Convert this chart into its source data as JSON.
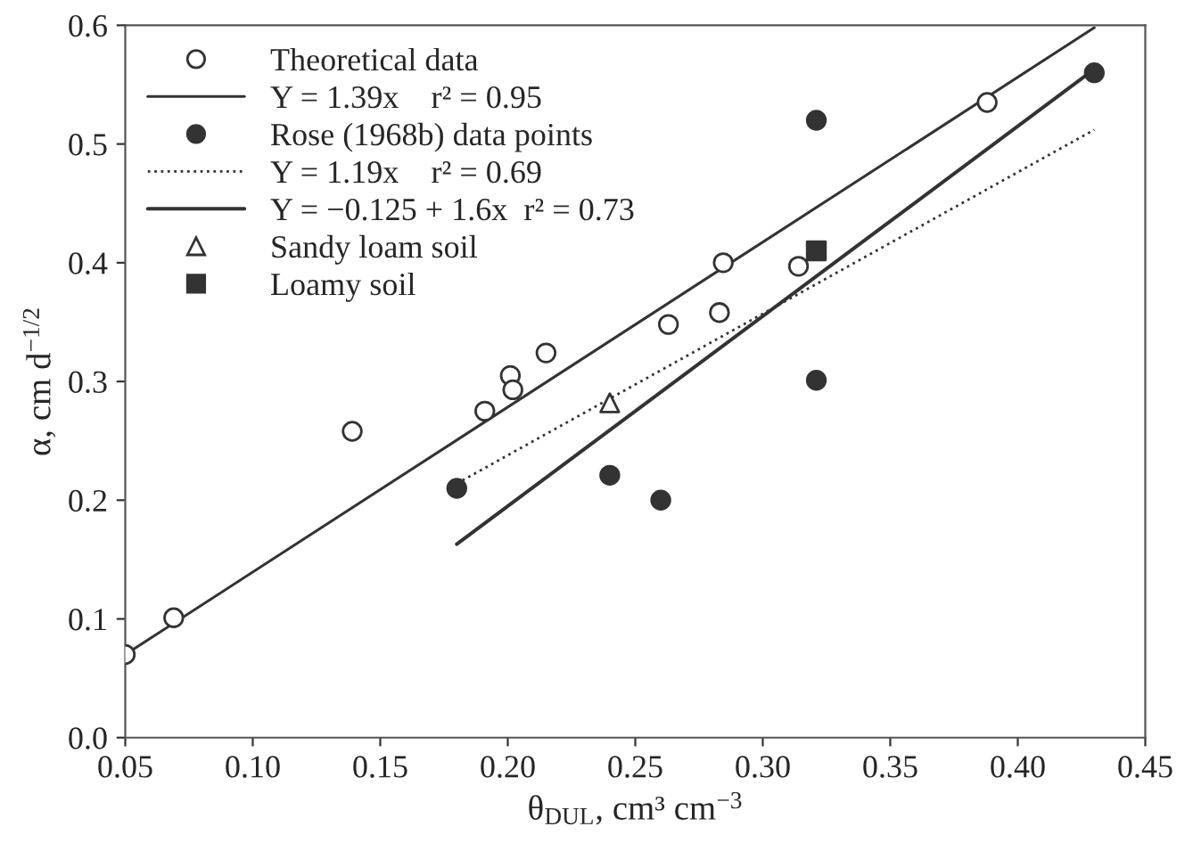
{
  "chart_data": {
    "type": "scatter",
    "xlabel": "θ$_{DUL}$, cm³ cm$^{−3}$",
    "ylabel": "α, cm d$^{−1/2}$",
    "xlim": [
      0.05,
      0.45
    ],
    "ylim": [
      0.0,
      0.6
    ],
    "xticks": [
      {
        "value": 0.05,
        "label": "0.05"
      },
      {
        "value": 0.1,
        "label": "0.10"
      },
      {
        "value": 0.15,
        "label": "0.15"
      },
      {
        "value": 0.2,
        "label": "0.20"
      },
      {
        "value": 0.25,
        "label": "0.25"
      },
      {
        "value": 0.3,
        "label": "0.30"
      },
      {
        "value": 0.35,
        "label": "0.35"
      },
      {
        "value": 0.4,
        "label": "0.40"
      },
      {
        "value": 0.45,
        "label": "0.45"
      }
    ],
    "yticks": [
      {
        "value": 0.0,
        "label": "0.0"
      },
      0.1,
      0.2,
      0.3,
      0.4,
      0.5,
      0.6
    ],
    "grid": false,
    "legend": "top left",
    "series": [
      {
        "name": "Theoretical data",
        "marker": "circle",
        "color": "#ffffff",
        "x": [
          0.05,
          0.069,
          0.139,
          0.191,
          0.201,
          0.202,
          0.215,
          0.263,
          0.283,
          0.2845,
          0.314,
          0.388
        ],
        "values": [
          0.07,
          0.101,
          0.258,
          0.275,
          0.305,
          0.293,
          0.324,
          0.348,
          0.358,
          0.4,
          0.397,
          0.535
        ]
      },
      {
        "name": "Y = 1.39x    r² = 0.95",
        "type": "line",
        "line_style": "solid",
        "color": "#333333",
        "x": [
          0.05,
          0.43
        ],
        "values": [
          0.07,
          0.598
        ]
      },
      {
        "name": "Rose (1968b) data points",
        "marker": "circle",
        "color": "#333333",
        "x": [
          0.18,
          0.24,
          0.26,
          0.321,
          0.321,
          0.43
        ],
        "values": [
          0.21,
          0.221,
          0.2,
          0.52,
          0.301,
          0.56
        ]
      },
      {
        "name": "Y = 1.19x    r² = 0.69",
        "type": "line",
        "line_style": "dotted",
        "color": "#333333",
        "x": [
          0.18,
          0.43
        ],
        "values": [
          0.214,
          0.512
        ]
      },
      {
        "name": "Y = −0.125 + 1.6x  r² = 0.73",
        "type": "line",
        "line_style": "solid",
        "color": "#333333",
        "x": [
          0.18,
          0.43
        ],
        "values": [
          0.163,
          0.563
        ]
      },
      {
        "name": "Sandy loam soil",
        "marker": "triangle",
        "color": "#ffffff",
        "x": [
          0.24
        ],
        "values": [
          0.282
        ]
      },
      {
        "name": "Loamy soil",
        "marker": "square",
        "color": "#333333",
        "x": [
          0.321
        ],
        "values": [
          0.41
        ]
      }
    ]
  }
}
